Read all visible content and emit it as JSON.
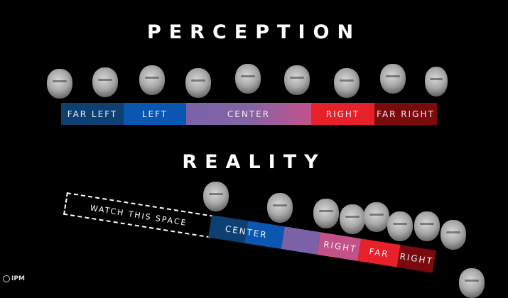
{
  "perception": {
    "title": "PERCEPTION",
    "segments": [
      {
        "label": "FAR LEFT",
        "color": "#0d3f73"
      },
      {
        "label": "LEFT",
        "color": "#0a56b0"
      },
      {
        "label": "CENTER",
        "color": "#8a62a8"
      },
      {
        "label": "RIGHT",
        "color": "#e8202a"
      },
      {
        "label": "FAR RIGHT",
        "color": "#7a0a0e"
      }
    ]
  },
  "reality": {
    "title": "REALITY",
    "placeholder_label": "WATCH THIS SPACE",
    "labels": {
      "center": "CENTER",
      "right": "RIGHT",
      "far": "FAR",
      "far_right": "RIGHT"
    }
  },
  "logo": {
    "text": "IPM"
  }
}
